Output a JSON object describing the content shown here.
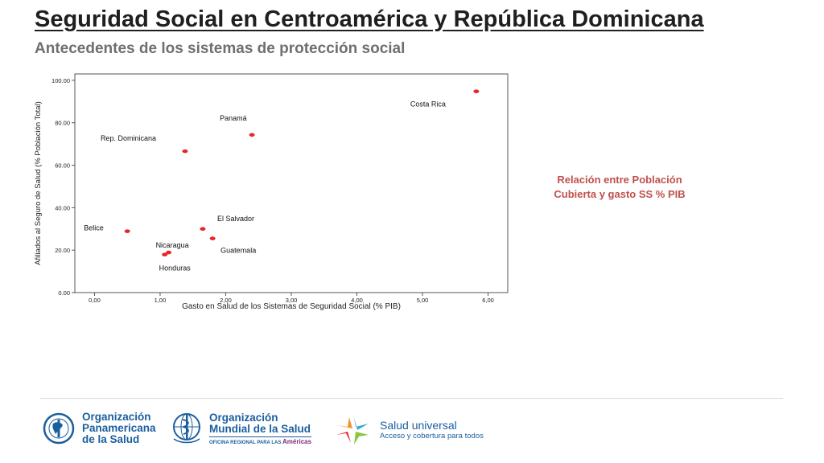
{
  "slide": {
    "title": "Seguridad Social en Centroamérica y República Dominicana",
    "subtitle": "Antecedentes de los sistemas de protección social",
    "side_note_line1": "Relación entre Población",
    "side_note_line2": "Cubierta y gasto SS % PIB"
  },
  "chart_data": {
    "type": "scatter",
    "xlabel": "Gasto en Salud de los Sistemas de Seguridad Social (% PIB)",
    "ylabel": "Afiliados al Seguro de Salud (% Población Total)",
    "xlim": [
      -0.3,
      6.3
    ],
    "ylim": [
      0,
      103
    ],
    "x_ticks": [
      0,
      1,
      2,
      3,
      4,
      5,
      6
    ],
    "x_tick_labels": [
      "0,00",
      "1,00",
      "2,00",
      "3,00",
      "4,00",
      "5,00",
      "6,00"
    ],
    "y_ticks": [
      0,
      20,
      40,
      60,
      80,
      100
    ],
    "y_tick_labels": [
      "0.00",
      "20.00",
      "40.00",
      "60.00",
      "80.00",
      "100.00"
    ],
    "marker_color": "#e8262a",
    "plot_background": "#ffffff",
    "points": [
      {
        "label": "Costa Rica",
        "x": 5.82,
        "y": 94.8
      },
      {
        "label": "Panamá",
        "x": 2.4,
        "y": 74.3
      },
      {
        "label": "Rep. Dominicana",
        "x": 1.38,
        "y": 66.6
      },
      {
        "label": "El Salvador",
        "x": 1.65,
        "y": 30.0
      },
      {
        "label": "Guatemala",
        "x": 1.8,
        "y": 25.5
      },
      {
        "label": "Belice",
        "x": 0.5,
        "y": 28.9
      },
      {
        "label": "Nicaragua",
        "x": 1.13,
        "y": 18.9
      },
      {
        "label": "Honduras",
        "x": 1.07,
        "y": 17.9
      }
    ]
  },
  "footer": {
    "ops_logo_line1": "Organización",
    "ops_logo_line2": "Panamericana",
    "ops_logo_line3": "de la Salud",
    "oms_logo_line1": "Organización",
    "oms_logo_line2": "Mundial de la Salud",
    "oms_logo_sub_prefix": "OFICINA REGIONAL PARA LAS",
    "oms_logo_sub_region": "Américas",
    "su_logo_title": "Salud universal",
    "su_logo_sub": "Acceso y cobertura para todos",
    "colors": {
      "brand_blue": "#1b5e9e",
      "orange": "#f3922b",
      "green": "#8cc63e",
      "red": "#e8262a",
      "light_blue": "#35a9d9"
    }
  }
}
